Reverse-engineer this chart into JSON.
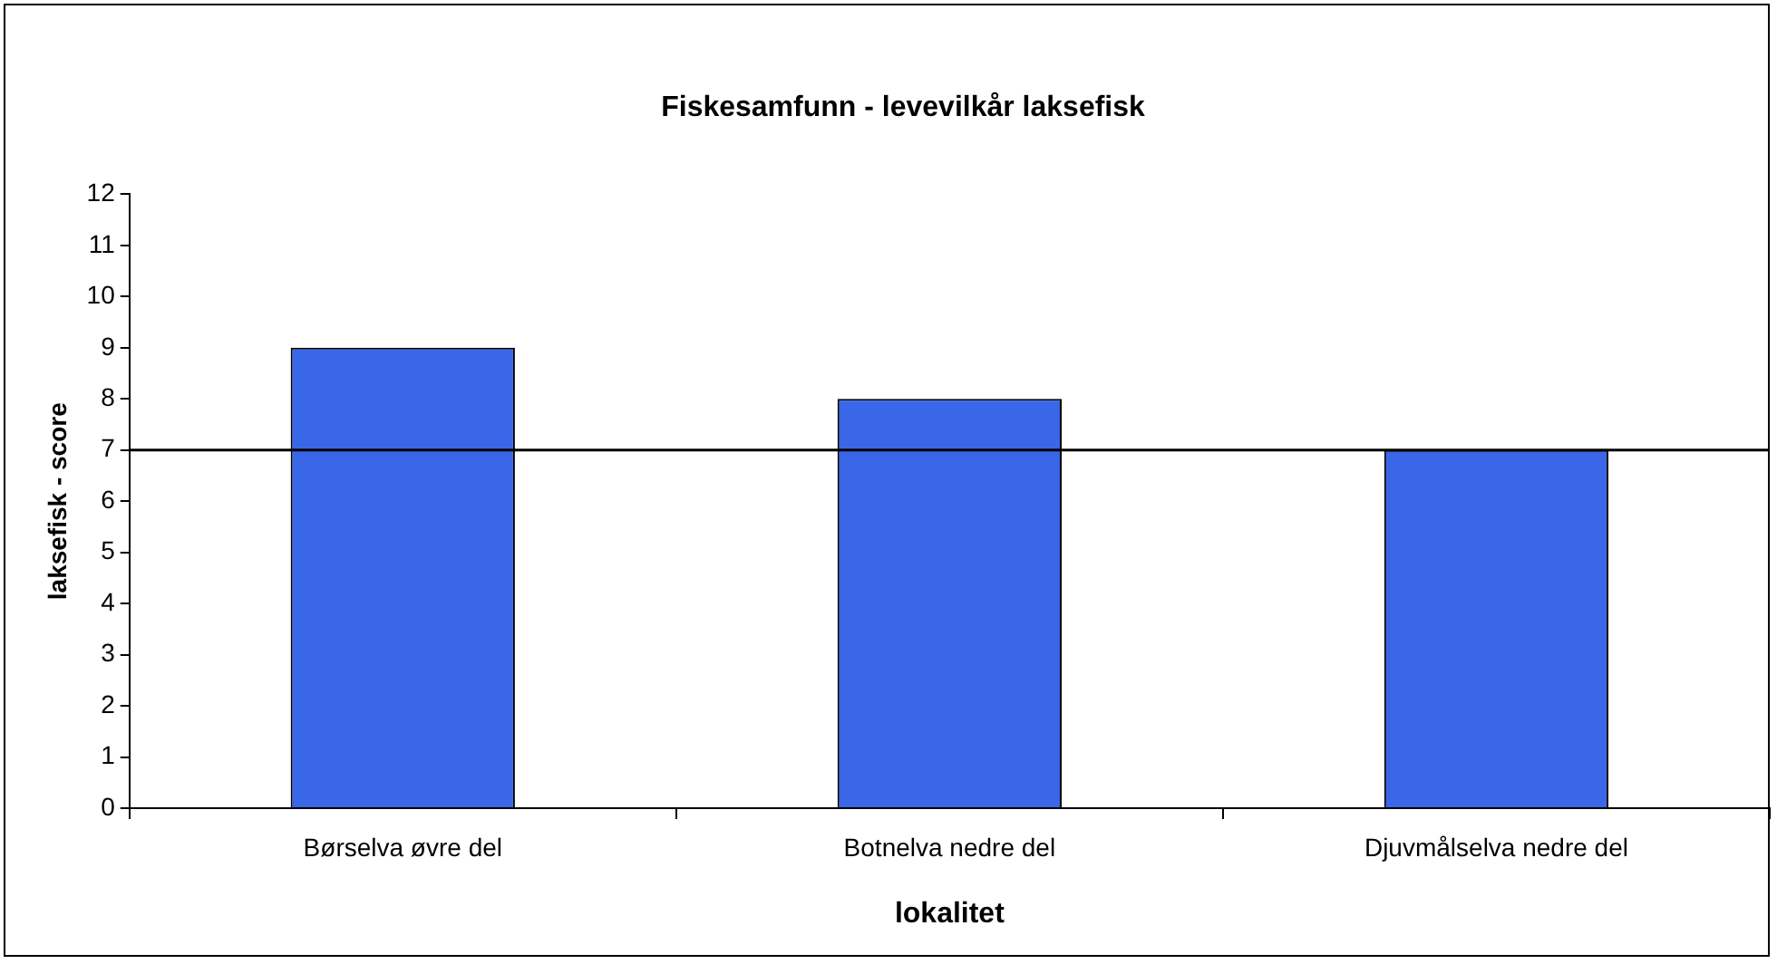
{
  "chart_data": {
    "type": "bar",
    "title": "Fiskesamfunn - levevilkår laksefisk",
    "xlabel": "lokalitet",
    "ylabel": "laksefisk - score",
    "categories": [
      "Børselva øvre del",
      "Botnelva nedre del",
      "Djuvmålselva nedre del"
    ],
    "values": [
      9,
      8,
      7
    ],
    "color": "#3a66e8",
    "ylim": [
      0,
      12
    ],
    "yticks": [
      0,
      1,
      2,
      3,
      4,
      5,
      6,
      7,
      8,
      9,
      10,
      11,
      12
    ],
    "grid": false,
    "legend": false,
    "ref_lines": [
      {
        "axis": "y",
        "value": 7,
        "color": "#000000"
      }
    ]
  }
}
